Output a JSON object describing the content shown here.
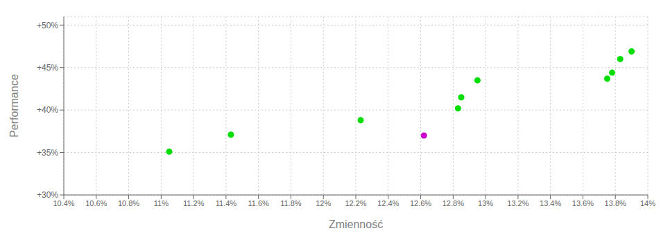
{
  "chart_data": {
    "type": "scatter",
    "xlabel": "Zmienność",
    "ylabel": "Performance",
    "x": [
      0.1105,
      0.1143,
      0.1223,
      0.1262,
      0.1283,
      0.1285,
      0.1295,
      0.1375,
      0.1378,
      0.1383,
      0.139
    ],
    "values": [
      0.351,
      0.371,
      0.388,
      0.37,
      0.402,
      0.415,
      0.435,
      0.437,
      0.444,
      0.46,
      0.469
    ],
    "colors": [
      "#00dd00",
      "#00dd00",
      "#00dd00",
      "#cc00cc",
      "#00dd00",
      "#00dd00",
      "#00dd00",
      "#00dd00",
      "#00dd00",
      "#00dd00",
      "#00dd00"
    ],
    "xlim": [
      0.104,
      0.14
    ],
    "ylim": [
      0.3,
      0.51
    ],
    "xticks": [
      {
        "value": 0.104,
        "label": "10.4%"
      },
      {
        "value": 0.106,
        "label": "10.6%"
      },
      {
        "value": 0.108,
        "label": "10.8%"
      },
      {
        "value": 0.11,
        "label": "11%"
      },
      {
        "value": 0.112,
        "label": "11.2%"
      },
      {
        "value": 0.114,
        "label": "11.4%"
      },
      {
        "value": 0.116,
        "label": "11.6%"
      },
      {
        "value": 0.118,
        "label": "11.8%"
      },
      {
        "value": 0.12,
        "label": "12%"
      },
      {
        "value": 0.122,
        "label": "12.2%"
      },
      {
        "value": 0.124,
        "label": "12.4%"
      },
      {
        "value": 0.126,
        "label": "12.6%"
      },
      {
        "value": 0.128,
        "label": "12.8%"
      },
      {
        "value": 0.13,
        "label": "13%"
      },
      {
        "value": 0.132,
        "label": "13.2%"
      },
      {
        "value": 0.134,
        "label": "13.4%"
      },
      {
        "value": 0.136,
        "label": "13.6%"
      },
      {
        "value": 0.138,
        "label": "13.8%"
      },
      {
        "value": 0.14,
        "label": "14%"
      }
    ],
    "yticks": [
      {
        "value": 0.3,
        "label": "+30%"
      },
      {
        "value": 0.35,
        "label": "+35%"
      },
      {
        "value": 0.4,
        "label": "+40%"
      },
      {
        "value": 0.45,
        "label": "+45%"
      },
      {
        "value": 0.5,
        "label": "+50%"
      }
    ],
    "grid": true
  }
}
